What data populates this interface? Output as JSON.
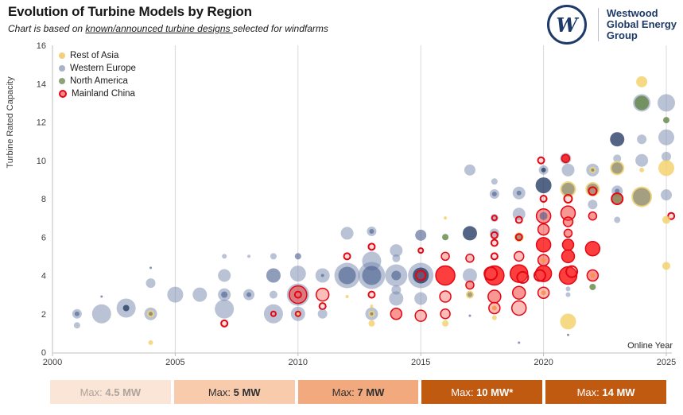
{
  "header": {
    "title": "Evolution of Turbine Models by Region",
    "subtitle_prefix": "Chart is based on ",
    "subtitle_underlined": "known/announced turbine designs ",
    "subtitle_suffix": "selected for windfarms"
  },
  "logo": {
    "letter": "W",
    "lines": [
      "Westwood",
      "Global Energy",
      "Group"
    ],
    "color": "#1e3a68"
  },
  "legend": {
    "items": [
      {
        "label": "Rest of Asia",
        "color": "#F2CF79",
        "ring": false
      },
      {
        "label": "Western Europe",
        "color": "#A9B3C7",
        "ring": false
      },
      {
        "label": "North America",
        "color": "#8CA377",
        "ring": false
      },
      {
        "label": "Mainland China",
        "color": "#F58C8C",
        "ring": true,
        "ring_color": "#E30613"
      }
    ]
  },
  "chart_data": {
    "type": "scatter",
    "title": "Evolution of Turbine Models by Region",
    "xlabel": "Online Year",
    "ylabel": "Turbine Rated Capacity",
    "xlim": [
      2000,
      2025
    ],
    "ylim": [
      0,
      16
    ],
    "x_ticks": [
      2000,
      2005,
      2010,
      2015,
      2020,
      2025
    ],
    "y_ticks": [
      0,
      2,
      4,
      6,
      8,
      10,
      12,
      14,
      16
    ],
    "grid": "vertical",
    "grid_color": "#d9d9d9",
    "axis_color": "#bfbfbf",
    "tick_label_color": "#3d3d3d",
    "legend_position": "top-left",
    "style_regions": {
      "we": "Western Europe",
      "wed": "Western Europe",
      "nav": "Western Europe",
      "dot": "Western Europe",
      "roa": "Rest of Asia",
      "ol": "Rest of Asia",
      "na": "North America",
      "mcb": "Mainland China",
      "mc": "Mainland China",
      "mcp": "Mainland China",
      "mcr": "Mainland China",
      "org": "Mainland China"
    },
    "styles": {
      "we": {
        "fill": "rgba(118,135,173,0.50)"
      },
      "wed": {
        "fill": "rgba(70,92,140,0.60)"
      },
      "nav": {
        "fill": "rgba(34,56,99,0.78)"
      },
      "roa": {
        "fill": "rgba(244,206,98,0.78)"
      },
      "ol": {
        "fill": "rgba(130,122,80,0.72)",
        "stroke": "rgba(240,214,126,0.9)",
        "sw": 2
      },
      "na": {
        "fill": "rgba(99,134,72,0.82)"
      },
      "mcb": {
        "fill": "rgba(252,8,8,0.78)",
        "stroke": "#e30613",
        "sw": 1.5
      },
      "mc": {
        "fill": "rgba(243,65,60,0.55)",
        "stroke": "#e30613",
        "sw": 1.5
      },
      "mcp": {
        "fill": "rgba(247,135,130,0.55)",
        "stroke": "#e30613",
        "sw": 1.5
      },
      "mcr": {
        "fill": "rgba(255,80,80,0.20)",
        "stroke": "#e30613",
        "sw": 2
      },
      "org": {
        "fill": "rgba(247,148,70,0.92)"
      },
      "dot": {
        "fill": "rgba(115,130,165,0.85)"
      }
    },
    "points": [
      [
        2001,
        2,
        6,
        "we"
      ],
      [
        2001,
        2,
        3,
        "wed"
      ],
      [
        2001,
        1.4,
        4,
        "we"
      ],
      [
        2002,
        2,
        12,
        "we"
      ],
      [
        2002,
        2.9,
        1.5,
        "dot"
      ],
      [
        2003,
        2.3,
        12,
        "we"
      ],
      [
        2003,
        2.3,
        4,
        "nav"
      ],
      [
        2004,
        4.4,
        1.5,
        "dot"
      ],
      [
        2004,
        3.6,
        6,
        "we"
      ],
      [
        2004,
        2,
        8,
        "we"
      ],
      [
        2004,
        2,
        3.5,
        "ol"
      ],
      [
        2004,
        0.5,
        3,
        "roa"
      ],
      [
        2005,
        3,
        10,
        "we"
      ],
      [
        2006,
        3,
        9,
        "we"
      ],
      [
        2007,
        5,
        3,
        "we"
      ],
      [
        2007,
        4,
        8,
        "we"
      ],
      [
        2007,
        3,
        8,
        "we"
      ],
      [
        2007,
        3,
        4,
        "wed"
      ],
      [
        2007,
        2.25,
        12,
        "we"
      ],
      [
        2007,
        1.5,
        4,
        "mcr"
      ],
      [
        2008,
        5,
        2,
        "we"
      ],
      [
        2008,
        3,
        7,
        "we"
      ],
      [
        2008,
        3,
        3,
        "wed"
      ],
      [
        2009,
        5,
        4,
        "we"
      ],
      [
        2009,
        4,
        9,
        "wed"
      ],
      [
        2009,
        3,
        5,
        "we"
      ],
      [
        2009,
        2,
        12,
        "we"
      ],
      [
        2009,
        2,
        3,
        "mcr"
      ],
      [
        2010,
        5,
        4,
        "wed"
      ],
      [
        2010,
        4.1,
        10,
        "we"
      ],
      [
        2010,
        3,
        14,
        "we"
      ],
      [
        2010,
        3,
        11,
        "mc"
      ],
      [
        2010,
        3,
        4,
        "mcr"
      ],
      [
        2010,
        2,
        9,
        "we"
      ],
      [
        2010,
        2,
        3,
        "mcr"
      ],
      [
        2010,
        2,
        2,
        "roa"
      ],
      [
        2011,
        4,
        9,
        "we"
      ],
      [
        2011,
        4,
        2,
        "wed"
      ],
      [
        2011,
        3,
        8,
        "mcp"
      ],
      [
        2011,
        2.4,
        4,
        "mcr"
      ],
      [
        2011,
        2,
        6,
        "we"
      ],
      [
        2012,
        6.2,
        8,
        "we"
      ],
      [
        2012,
        5,
        4,
        "mcr"
      ],
      [
        2012,
        4,
        16,
        "we"
      ],
      [
        2012,
        4,
        11,
        "wed"
      ],
      [
        2012,
        2.9,
        2,
        "roa"
      ],
      [
        2013,
        6.3,
        6,
        "we"
      ],
      [
        2013,
        6.3,
        3,
        "wed"
      ],
      [
        2013,
        5.5,
        4,
        "mcr"
      ],
      [
        2013,
        4.75,
        12,
        "we"
      ],
      [
        2013,
        4,
        17,
        "we"
      ],
      [
        2013,
        4,
        12,
        "wed"
      ],
      [
        2013,
        3,
        4,
        "mcr"
      ],
      [
        2013,
        2.4,
        2,
        "roa"
      ],
      [
        2013,
        2,
        8,
        "we"
      ],
      [
        2013,
        2,
        3,
        "ol"
      ],
      [
        2013,
        1.5,
        4,
        "roa"
      ],
      [
        2014,
        5.3,
        8,
        "we"
      ],
      [
        2014,
        4.9,
        5,
        "we"
      ],
      [
        2014,
        4,
        14,
        "we"
      ],
      [
        2014,
        4,
        6,
        "wed"
      ],
      [
        2014,
        3.25,
        6,
        "we"
      ],
      [
        2014,
        2.8,
        9,
        "we"
      ],
      [
        2014,
        2,
        7,
        "mc"
      ],
      [
        2015,
        6.1,
        7,
        "wed"
      ],
      [
        2015,
        5.3,
        3,
        "mcr"
      ],
      [
        2015,
        4,
        16,
        "we"
      ],
      [
        2015,
        4,
        10,
        "nav"
      ],
      [
        2015,
        4,
        6,
        "mcr"
      ],
      [
        2015,
        2.8,
        8,
        "we"
      ],
      [
        2015,
        1.9,
        7,
        "mcp"
      ],
      [
        2016,
        7,
        2,
        "roa"
      ],
      [
        2016,
        6,
        4,
        "na"
      ],
      [
        2016,
        5,
        5,
        "mcp"
      ],
      [
        2016,
        4,
        12,
        "mcb"
      ],
      [
        2016,
        2.9,
        7,
        "mcp"
      ],
      [
        2016,
        2,
        6,
        "mcp"
      ],
      [
        2016,
        1.5,
        4,
        "roa"
      ],
      [
        2017,
        9.5,
        7,
        "we"
      ],
      [
        2017,
        6.2,
        9,
        "nav"
      ],
      [
        2017,
        4.9,
        5,
        "mcp"
      ],
      [
        2017,
        4,
        9,
        "we"
      ],
      [
        2017,
        3.5,
        5,
        "mc"
      ],
      [
        2017,
        3,
        4,
        "ol"
      ],
      [
        2017,
        1.9,
        1.5,
        "dot"
      ],
      [
        2018,
        8.9,
        4,
        "we"
      ],
      [
        2018,
        8.25,
        6,
        "we"
      ],
      [
        2018,
        8.25,
        3,
        "wed"
      ],
      [
        2018,
        7,
        5,
        "we"
      ],
      [
        2018,
        7,
        3,
        "mcr"
      ],
      [
        2018,
        6.2,
        6,
        "we"
      ],
      [
        2018,
        6.1,
        4,
        "mcr"
      ],
      [
        2018,
        5.7,
        4,
        "mcr"
      ],
      [
        2018,
        5,
        4,
        "mcr"
      ],
      [
        2018,
        4,
        12,
        "mcb"
      ],
      [
        2017.85,
        4.1,
        8,
        "mcr"
      ],
      [
        2018,
        2.9,
        8,
        "mc"
      ],
      [
        2018,
        2.3,
        7,
        "mcp"
      ],
      [
        2018,
        2.3,
        3,
        "org"
      ],
      [
        2018,
        1.8,
        3,
        "roa"
      ],
      [
        2019,
        8.3,
        8,
        "we"
      ],
      [
        2019,
        8.3,
        3,
        "wed"
      ],
      [
        2019,
        7.2,
        8,
        "we"
      ],
      [
        2019,
        6.9,
        4,
        "mcr"
      ],
      [
        2019,
        6,
        5,
        "ol"
      ],
      [
        2019,
        6,
        4,
        "mcr"
      ],
      [
        2019,
        5,
        6,
        "mcp"
      ],
      [
        2019,
        4.1,
        11,
        "mcb"
      ],
      [
        2019.15,
        3.9,
        7,
        "mcr"
      ],
      [
        2019,
        3.1,
        8,
        "mc"
      ],
      [
        2019,
        2.3,
        9,
        "mcp"
      ],
      [
        2019,
        0.5,
        1.5,
        "dot"
      ],
      [
        2019.9,
        10,
        4,
        "mcr"
      ],
      [
        2020,
        9.5,
        6,
        "we"
      ],
      [
        2020,
        9.5,
        3,
        "nav"
      ],
      [
        2020,
        8.7,
        10,
        "nav"
      ],
      [
        2020,
        8,
        4,
        "mcr"
      ],
      [
        2020,
        7.1,
        9,
        "mc"
      ],
      [
        2020,
        7.1,
        5,
        "wed"
      ],
      [
        2020,
        6.4,
        7,
        "mc"
      ],
      [
        2020,
        5.6,
        9,
        "mcb"
      ],
      [
        2020,
        4.8,
        7,
        "mc"
      ],
      [
        2020,
        4.8,
        3,
        "org"
      ],
      [
        2020,
        4.1,
        10,
        "mcb"
      ],
      [
        2019.85,
        4,
        7,
        "mcr"
      ],
      [
        2020,
        3.1,
        7,
        "mcp"
      ],
      [
        2020,
        3.1,
        3,
        "org"
      ],
      [
        2020.9,
        10.1,
        7,
        "we"
      ],
      [
        2020.9,
        10.1,
        5,
        "mcb"
      ],
      [
        2021,
        9.5,
        8,
        "we"
      ],
      [
        2021,
        8.5,
        9,
        "ol"
      ],
      [
        2021,
        8,
        5,
        "mcr"
      ],
      [
        2021,
        7.25,
        9,
        "mc"
      ],
      [
        2021,
        6.8,
        6,
        "mc"
      ],
      [
        2021,
        6.2,
        5,
        "mc"
      ],
      [
        2021,
        5.6,
        7,
        "mcb"
      ],
      [
        2021,
        5,
        8,
        "mcb"
      ],
      [
        2021,
        4,
        11,
        "mcb"
      ],
      [
        2021.15,
        4.2,
        7,
        "mcr"
      ],
      [
        2021,
        3.3,
        3,
        "we"
      ],
      [
        2021,
        3,
        3,
        "we"
      ],
      [
        2021,
        1.6,
        10,
        "roa"
      ],
      [
        2021,
        0.9,
        1.5,
        "dot"
      ],
      [
        2022,
        9.5,
        8,
        "we"
      ],
      [
        2022,
        9.5,
        3,
        "ol"
      ],
      [
        2022,
        8.5,
        8,
        "ol"
      ],
      [
        2022,
        8.4,
        5,
        "mcr"
      ],
      [
        2022,
        7.7,
        6,
        "we"
      ],
      [
        2022,
        7.1,
        5,
        "mc"
      ],
      [
        2022,
        5.4,
        9,
        "mcb"
      ],
      [
        2022,
        4,
        7,
        "mc"
      ],
      [
        2022,
        4,
        3,
        "org"
      ],
      [
        2022,
        3.4,
        4,
        "na"
      ],
      [
        2023,
        11.1,
        9,
        "nav"
      ],
      [
        2023,
        10.1,
        5,
        "we"
      ],
      [
        2023,
        9.6,
        8,
        "ol"
      ],
      [
        2023,
        8.4,
        7,
        "we"
      ],
      [
        2023,
        8.4,
        3,
        "wed"
      ],
      [
        2023,
        8,
        6,
        "na"
      ],
      [
        2023,
        8,
        7,
        "mcr"
      ],
      [
        2023,
        6.9,
        4,
        "we"
      ],
      [
        2024,
        14.1,
        7,
        "roa"
      ],
      [
        2024,
        13,
        11,
        "we"
      ],
      [
        2024,
        13,
        9,
        "na"
      ],
      [
        2024,
        11.1,
        6,
        "we"
      ],
      [
        2024,
        10,
        8,
        "we"
      ],
      [
        2024,
        9.5,
        3,
        "roa"
      ],
      [
        2024,
        8.1,
        12,
        "ol"
      ],
      [
        2025,
        13,
        11,
        "we"
      ],
      [
        2025,
        12.1,
        4,
        "na"
      ],
      [
        2025,
        11.2,
        10,
        "we"
      ],
      [
        2025,
        10.2,
        6,
        "we"
      ],
      [
        2025,
        9.6,
        10,
        "roa"
      ],
      [
        2025,
        8.2,
        7,
        "we"
      ],
      [
        2025.2,
        7.1,
        4,
        "mcr"
      ],
      [
        2025,
        6.9,
        5,
        "roa"
      ],
      [
        2025,
        4.5,
        5,
        "roa"
      ]
    ]
  },
  "footer": {
    "boxes": [
      {
        "prefix": "Max: ",
        "value": "4.5 MW",
        "bg": "#FBE5D6",
        "fg": "#ADA49C"
      },
      {
        "prefix": "Max: ",
        "value": "5 MW",
        "bg": "#F8CBAD",
        "fg": "#303030"
      },
      {
        "prefix": "Max: ",
        "value": "7 MW",
        "bg": "#F2A97E",
        "fg": "#303030"
      },
      {
        "prefix": "Max: ",
        "value": "10 MW*",
        "bg": "#C05A11",
        "fg": "#FFFFFF"
      },
      {
        "prefix": "Max: ",
        "value": "14 MW",
        "bg": "#C05A11",
        "fg": "#FFFFFF"
      }
    ]
  }
}
